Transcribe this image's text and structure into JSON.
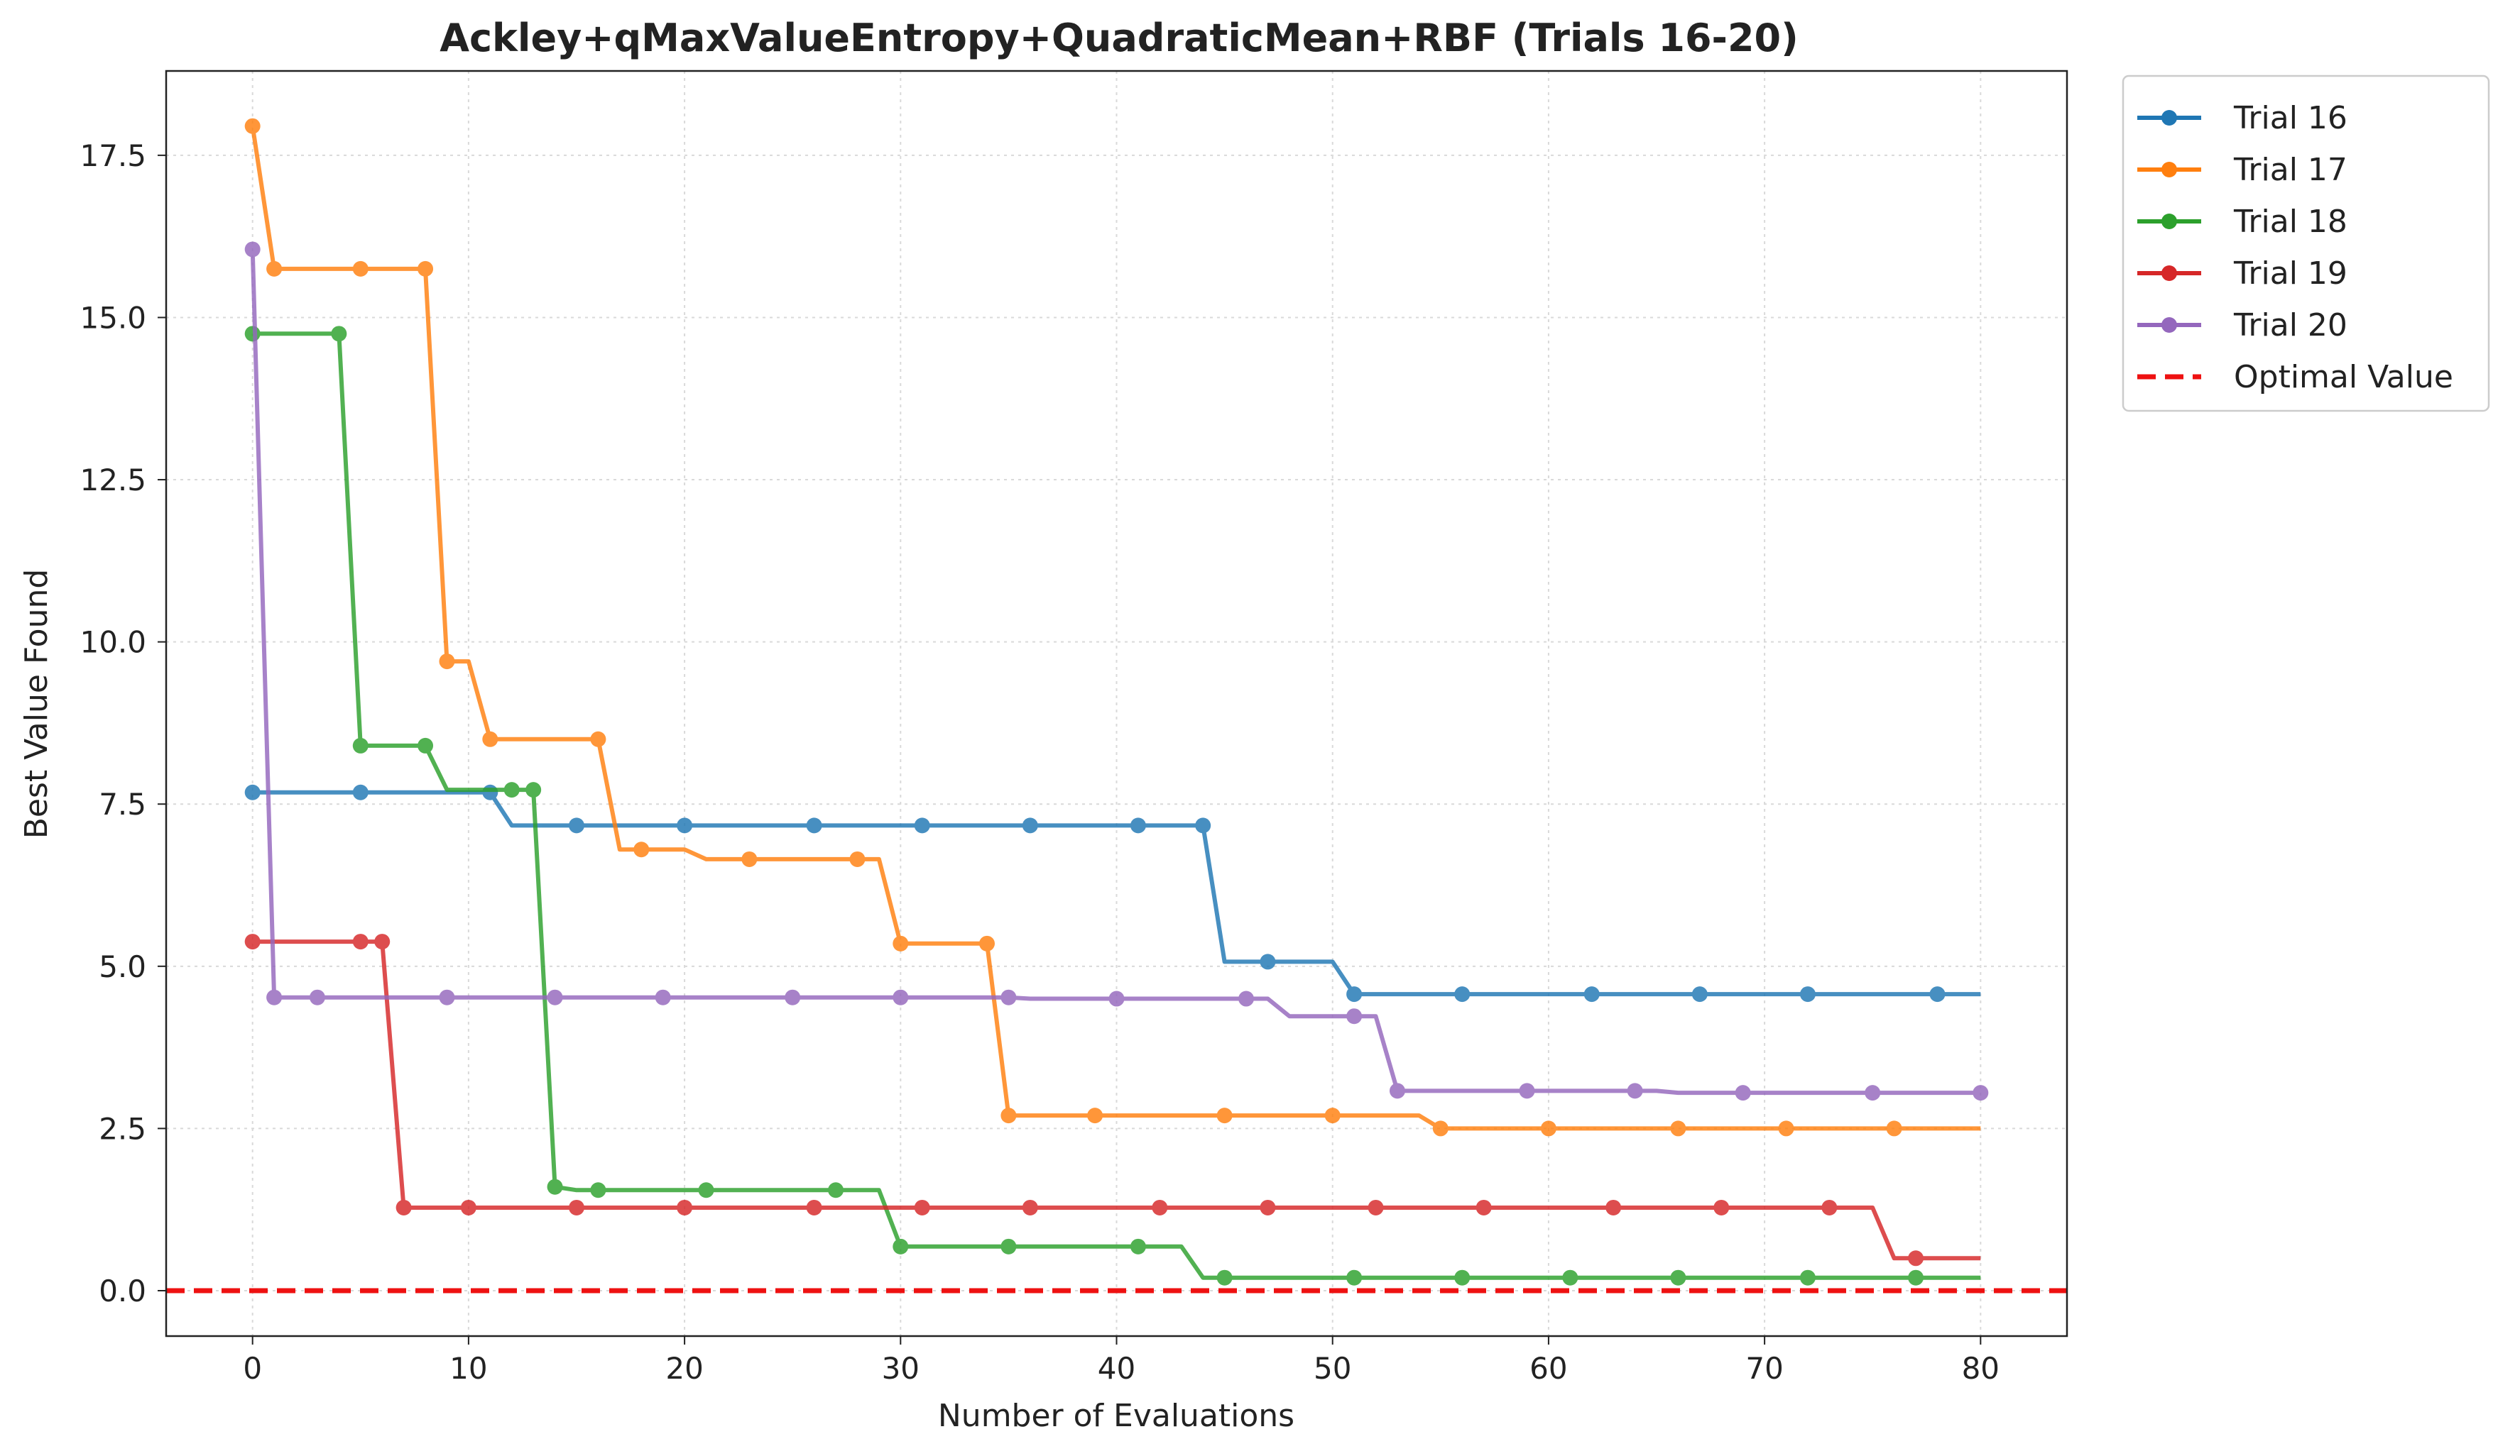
{
  "chart_data": {
    "type": "line",
    "title": "Ackley+qMaxValueEntropy+QuadraticMean+RBF (Trials 16-20)",
    "xlabel": "Number of Evaluations",
    "ylabel": "Best Value Found",
    "xlim": [
      -4,
      84
    ],
    "ylim": [
      -0.7,
      18.8
    ],
    "xticks": [
      0,
      10,
      20,
      30,
      40,
      50,
      60,
      70,
      80
    ],
    "xtick_labels": [
      "0",
      "10",
      "20",
      "30",
      "40",
      "50",
      "60",
      "70",
      "80"
    ],
    "yticks": [
      0.0,
      2.5,
      5.0,
      7.5,
      10.0,
      12.5,
      15.0,
      17.5
    ],
    "ytick_labels": [
      "0.0",
      "2.5",
      "5.0",
      "7.5",
      "10.0",
      "12.5",
      "15.0",
      "17.5"
    ],
    "grid": true,
    "legend_position": "outside top-right",
    "series": [
      {
        "name": "Trial 16",
        "color": "#1f77b4",
        "line": [
          [
            0,
            7.68
          ],
          [
            11,
            7.68
          ],
          [
            12,
            7.17
          ],
          [
            44,
            7.17
          ],
          [
            45,
            5.07
          ],
          [
            50,
            5.07
          ],
          [
            51,
            4.57
          ],
          [
            80,
            4.57
          ]
        ],
        "markers": [
          [
            0,
            7.68
          ],
          [
            5,
            7.68
          ],
          [
            11,
            7.68
          ],
          [
            15,
            7.17
          ],
          [
            20,
            7.17
          ],
          [
            26,
            7.17
          ],
          [
            31,
            7.17
          ],
          [
            36,
            7.17
          ],
          [
            41,
            7.17
          ],
          [
            44,
            7.17
          ],
          [
            47,
            5.07
          ],
          [
            51,
            4.57
          ],
          [
            56,
            4.57
          ],
          [
            62,
            4.57
          ],
          [
            67,
            4.57
          ],
          [
            72,
            4.57
          ],
          [
            78,
            4.57
          ]
        ]
      },
      {
        "name": "Trial 17",
        "color": "#ff7f0e",
        "line": [
          [
            0,
            17.95
          ],
          [
            1,
            15.75
          ],
          [
            8,
            15.75
          ],
          [
            9,
            9.7
          ],
          [
            10,
            9.7
          ],
          [
            11,
            8.5
          ],
          [
            16,
            8.5
          ],
          [
            17,
            6.8
          ],
          [
            20,
            6.8
          ],
          [
            21,
            6.65
          ],
          [
            29,
            6.65
          ],
          [
            30,
            5.35
          ],
          [
            34,
            5.35
          ],
          [
            35,
            2.7
          ],
          [
            54,
            2.7
          ],
          [
            55,
            2.5
          ],
          [
            80,
            2.5
          ]
        ],
        "markers": [
          [
            0,
            17.95
          ],
          [
            1,
            15.75
          ],
          [
            5,
            15.75
          ],
          [
            8,
            15.75
          ],
          [
            9,
            9.7
          ],
          [
            11,
            8.5
          ],
          [
            16,
            8.5
          ],
          [
            18,
            6.8
          ],
          [
            23,
            6.65
          ],
          [
            28,
            6.65
          ],
          [
            30,
            5.35
          ],
          [
            34,
            5.35
          ],
          [
            35,
            2.7
          ],
          [
            39,
            2.7
          ],
          [
            45,
            2.7
          ],
          [
            50,
            2.7
          ],
          [
            55,
            2.5
          ],
          [
            60,
            2.5
          ],
          [
            66,
            2.5
          ],
          [
            71,
            2.5
          ],
          [
            76,
            2.5
          ]
        ]
      },
      {
        "name": "Trial 18",
        "color": "#2ca02c",
        "line": [
          [
            0,
            14.75
          ],
          [
            4,
            14.75
          ],
          [
            5,
            8.4
          ],
          [
            8,
            8.4
          ],
          [
            9,
            7.72
          ],
          [
            13,
            7.72
          ],
          [
            14,
            1.6
          ],
          [
            15,
            1.55
          ],
          [
            29,
            1.55
          ],
          [
            30,
            0.68
          ],
          [
            43,
            0.68
          ],
          [
            44,
            0.2
          ],
          [
            80,
            0.2
          ]
        ],
        "markers": [
          [
            0,
            14.75
          ],
          [
            4,
            14.75
          ],
          [
            5,
            8.4
          ],
          [
            8,
            8.4
          ],
          [
            12,
            7.72
          ],
          [
            13,
            7.72
          ],
          [
            14,
            1.6
          ],
          [
            16,
            1.55
          ],
          [
            21,
            1.55
          ],
          [
            27,
            1.55
          ],
          [
            30,
            0.68
          ],
          [
            35,
            0.68
          ],
          [
            41,
            0.68
          ],
          [
            45,
            0.2
          ],
          [
            51,
            0.2
          ],
          [
            56,
            0.2
          ],
          [
            61,
            0.2
          ],
          [
            66,
            0.2
          ],
          [
            72,
            0.2
          ],
          [
            77,
            0.2
          ]
        ]
      },
      {
        "name": "Trial 19",
        "color": "#d62728",
        "line": [
          [
            0,
            5.38
          ],
          [
            6,
            5.38
          ],
          [
            7,
            1.28
          ],
          [
            75,
            1.28
          ],
          [
            76,
            0.5
          ],
          [
            80,
            0.5
          ]
        ],
        "markers": [
          [
            0,
            5.38
          ],
          [
            5,
            5.38
          ],
          [
            6,
            5.38
          ],
          [
            7,
            1.28
          ],
          [
            10,
            1.28
          ],
          [
            15,
            1.28
          ],
          [
            20,
            1.28
          ],
          [
            26,
            1.28
          ],
          [
            31,
            1.28
          ],
          [
            36,
            1.28
          ],
          [
            42,
            1.28
          ],
          [
            47,
            1.28
          ],
          [
            52,
            1.28
          ],
          [
            57,
            1.28
          ],
          [
            63,
            1.28
          ],
          [
            68,
            1.28
          ],
          [
            73,
            1.28
          ],
          [
            77,
            0.5
          ]
        ]
      },
      {
        "name": "Trial 20",
        "color": "#9467bd",
        "line": [
          [
            0,
            16.05
          ],
          [
            1,
            4.52
          ],
          [
            35,
            4.52
          ],
          [
            36,
            4.5
          ],
          [
            47,
            4.5
          ],
          [
            48,
            4.23
          ],
          [
            52,
            4.23
          ],
          [
            53,
            3.08
          ],
          [
            65,
            3.08
          ],
          [
            66,
            3.05
          ],
          [
            80,
            3.05
          ]
        ],
        "markers": [
          [
            0,
            16.05
          ],
          [
            1,
            4.52
          ],
          [
            3,
            4.52
          ],
          [
            9,
            4.52
          ],
          [
            14,
            4.52
          ],
          [
            19,
            4.52
          ],
          [
            25,
            4.52
          ],
          [
            30,
            4.52
          ],
          [
            35,
            4.52
          ],
          [
            40,
            4.5
          ],
          [
            46,
            4.5
          ],
          [
            51,
            4.23
          ],
          [
            53,
            3.08
          ],
          [
            59,
            3.08
          ],
          [
            64,
            3.08
          ],
          [
            69,
            3.05
          ],
          [
            75,
            3.05
          ],
          [
            80,
            3.05
          ]
        ]
      }
    ],
    "reference_line": {
      "name": "Optimal Value",
      "y": 0,
      "color": "#ee1111",
      "style": "dashed"
    }
  }
}
